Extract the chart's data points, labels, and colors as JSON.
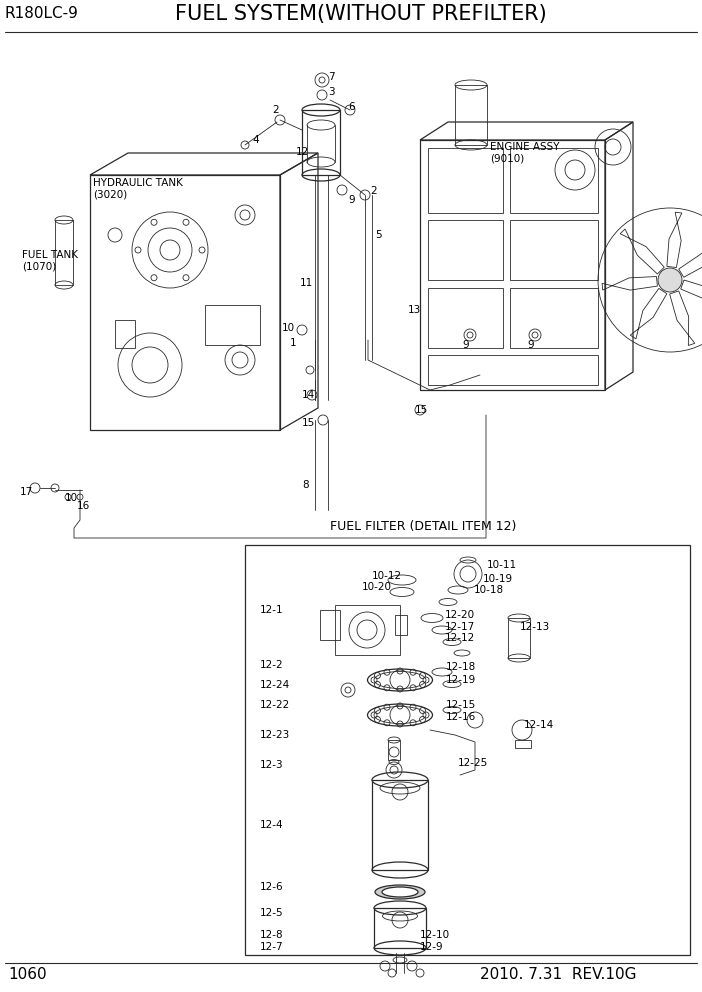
{
  "title": "FUEL SYSTEM(WITHOUT PREFILTER)",
  "model": "R180LC-9",
  "page": "1060",
  "revision": "2010. 7.31  REV.10G",
  "bg_color": "#ffffff",
  "line_color": "#2a2a2a",
  "text_color": "#000000",
  "fuel_filter_label": "FUEL FILTER (DETAIL ITEM 12)",
  "hydraulic_tank_label": "HYDRAULIC TANK\n(3020)",
  "fuel_tank_label": "FUEL TANK\n(1070)",
  "engine_assy_label": "ENGINE ASSY\n(9010)"
}
